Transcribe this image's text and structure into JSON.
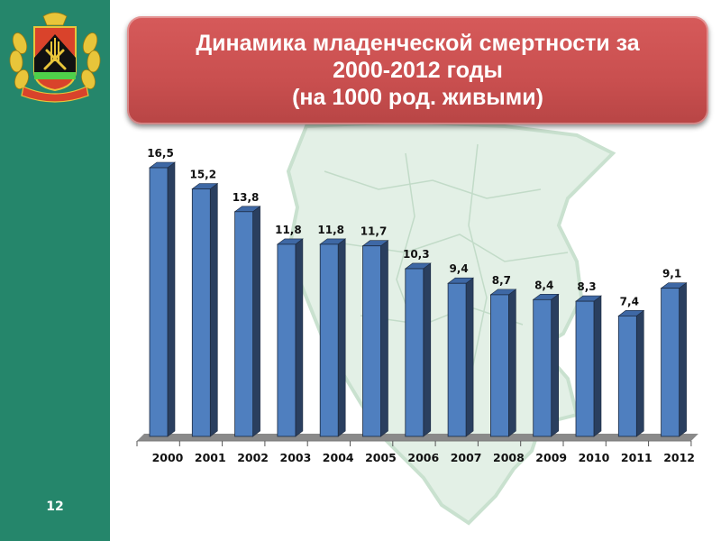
{
  "slide": {
    "page_number": "12",
    "title_lines": [
      "Динамика младенческой смертности за",
      "2000-2012 годы",
      "(на 1000 род. живыми)"
    ]
  },
  "colors": {
    "sidebar": "#25866b",
    "title_bg": "#c94f4f",
    "bar_front": "#4f7fbf",
    "bar_side": "#2a3f5f",
    "bar_top": "#3e68a5",
    "map": "#e3f0e6"
  },
  "chart_data": {
    "type": "bar",
    "title": "Динамика младенческой смертности за 2000-2012 годы (на 1000 род. живыми)",
    "xlabel": "",
    "ylabel": "",
    "categories": [
      "2000",
      "2001",
      "2002",
      "2003",
      "2004",
      "2005",
      "2006",
      "2007",
      "2008",
      "2009",
      "2010",
      "2011",
      "2012"
    ],
    "values": [
      16.5,
      15.2,
      13.8,
      11.8,
      11.8,
      11.7,
      10.3,
      9.4,
      8.7,
      8.4,
      8.3,
      7.4,
      9.1
    ],
    "value_labels": [
      "16,5",
      "15,2",
      "13,8",
      "11,8",
      "11,8",
      "11,7",
      "10,3",
      "9,4",
      "8,7",
      "8,4",
      "8,3",
      "7,4",
      "9,1"
    ],
    "ylim": [
      0,
      17
    ],
    "grid": false,
    "legend": "none",
    "style": "3d-column"
  }
}
